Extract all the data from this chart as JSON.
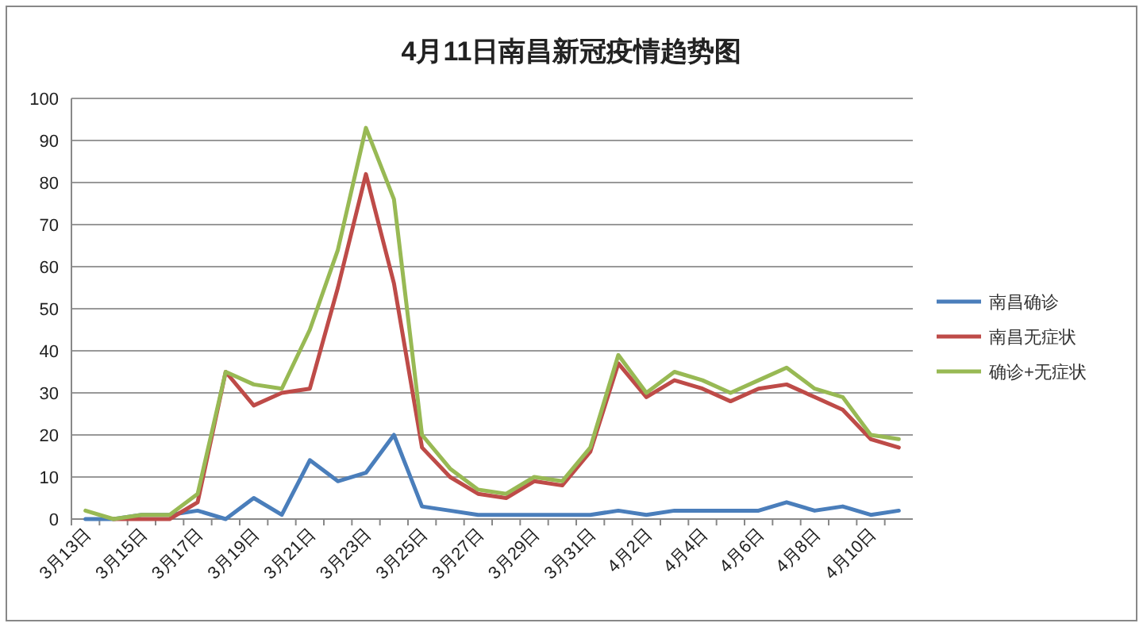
{
  "chart_data": {
    "type": "line",
    "title": "4月11日南昌新冠疫情趋势图",
    "categories": [
      "3月13日",
      null,
      "3月15日",
      null,
      "3月17日",
      null,
      "3月19日",
      null,
      "3月21日",
      null,
      "3月23日",
      null,
      "3月25日",
      null,
      "3月27日",
      null,
      "3月29日",
      null,
      "3月31日",
      null,
      "4月2日",
      null,
      "4月4日",
      null,
      "4月6日",
      null,
      "4月8日",
      null,
      "4月10日",
      null
    ],
    "series": [
      {
        "name": "南昌确诊",
        "color": "#4a7ebb",
        "values": [
          0,
          0,
          1,
          1,
          2,
          0,
          5,
          1,
          14,
          9,
          11,
          20,
          3,
          2,
          1,
          1,
          1,
          1,
          1,
          2,
          1,
          2,
          2,
          2,
          2,
          4,
          2,
          3,
          1,
          2
        ]
      },
      {
        "name": "南昌无症状",
        "color": "#be4b48",
        "values": [
          null,
          0,
          0,
          0,
          4,
          35,
          27,
          30,
          31,
          55,
          82,
          56,
          17,
          10,
          6,
          5,
          9,
          8,
          16,
          37,
          29,
          33,
          31,
          28,
          31,
          32,
          29,
          26,
          19,
          17
        ]
      },
      {
        "name": "确诊+无症状",
        "color": "#98b954",
        "values": [
          2,
          0,
          1,
          1,
          6,
          35,
          32,
          31,
          45,
          64,
          93,
          76,
          20,
          12,
          7,
          6,
          10,
          9,
          17,
          39,
          30,
          35,
          33,
          30,
          33,
          36,
          31,
          29,
          20,
          19
        ]
      }
    ],
    "ylim": [
      0,
      100
    ],
    "yticks": [
      0,
      10,
      20,
      30,
      40,
      50,
      60,
      70,
      80,
      90,
      100
    ],
    "grid": "y",
    "legend": "right",
    "marker": "none",
    "line_style": "solid"
  }
}
